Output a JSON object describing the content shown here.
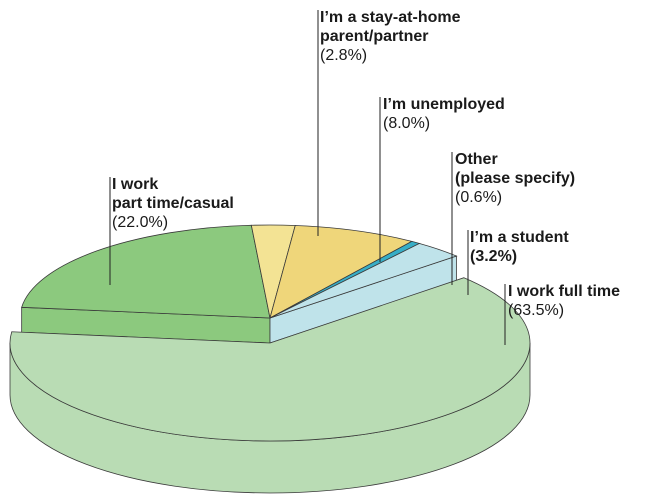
{
  "chart_data": {
    "type": "pie3d",
    "categories": [
      "I work full time",
      "I work\npart time/casual",
      "I’m a stay-at-home\nparent/partner",
      "I’m unemployed",
      "Other\n(please specify)",
      "I’m a student"
    ],
    "values": [
      63.5,
      22.0,
      2.8,
      8.0,
      0.6,
      3.2
    ],
    "value_labels": [
      "(63.5%)",
      "(22.0%)",
      "(2.8%)",
      "(8.0%)",
      "(0.6%)",
      "(3.2%)"
    ],
    "colors": [
      "#b9dcb4",
      "#8cc97e",
      "#f3e394",
      "#efd67a",
      "#37aec6",
      "#bfe3ea"
    ]
  }
}
